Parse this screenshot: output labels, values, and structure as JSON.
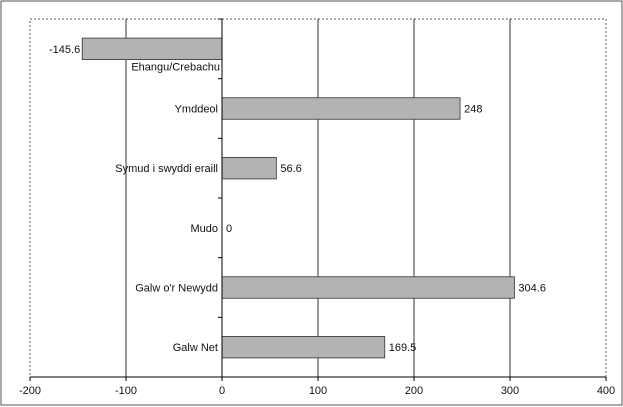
{
  "chart_data": {
    "type": "bar",
    "orientation": "horizontal",
    "title": "",
    "xlabel": "",
    "ylabel": "",
    "xlim": [
      -200,
      400
    ],
    "x_ticks": [
      -200,
      -100,
      0,
      100,
      200,
      300,
      400
    ],
    "x_tick_labels": [
      "-200",
      "-100",
      "0",
      "100",
      "200",
      "300",
      "400"
    ],
    "grid": "vertical lines at x ticks -100, 100, 200, 300",
    "categories": [
      "Ehangu/Crebachu",
      "Ymddeol",
      "Symud i swyddi eraill",
      "Mudo",
      "Galw o'r Newydd",
      "Galw Net"
    ],
    "values": [
      -145.6,
      248,
      56.6,
      0,
      304.6,
      169.5
    ],
    "data_labels": [
      "-145.6",
      "248",
      "56.6",
      "0",
      "304.6",
      "169.5"
    ],
    "colors": {
      "bar_fill": "#b3b3b3",
      "bar_stroke": "#333333",
      "axis": "#000000",
      "grid": "#000000",
      "frame": "#555555",
      "text": "#111111"
    }
  }
}
